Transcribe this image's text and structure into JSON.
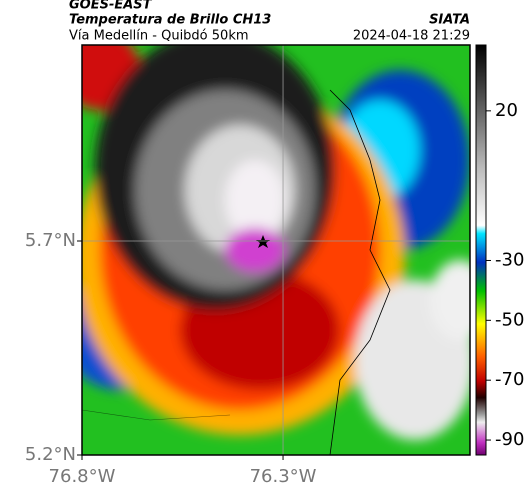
{
  "header": {
    "source": "GOES-EAST",
    "product": "Temperatura de Brillo CH13",
    "agency": "SIATA",
    "region": "Vía Medellín - Quibdó 50km",
    "datetime": "2024-04-18 21:29"
  },
  "map": {
    "xlim": [
      -76.8,
      -75.835
    ],
    "ylim": [
      5.2,
      6.158
    ],
    "xticks": [
      {
        "value": -76.8,
        "label": "76.8°W"
      },
      {
        "value": -76.3,
        "label": "76.3°W"
      }
    ],
    "yticks": [
      {
        "value": 5.2,
        "label": "5.2°N"
      },
      {
        "value": 5.7,
        "label": "5.7°N"
      }
    ],
    "grid": true,
    "colorbar": {
      "lim": [
        42,
        -95
      ],
      "ticks": [
        20,
        -30,
        -50,
        -70,
        -90
      ]
    }
  }
}
